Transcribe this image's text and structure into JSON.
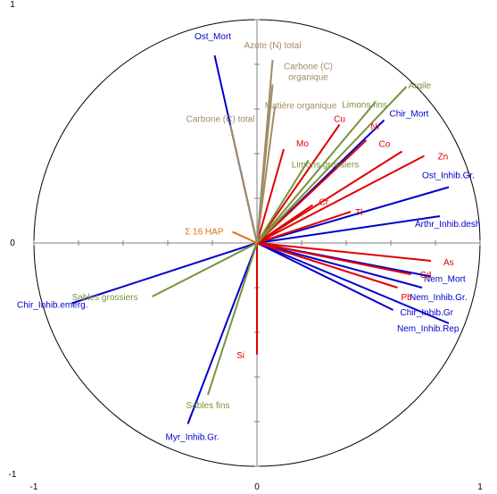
{
  "chart_data": {
    "type": "scatter",
    "subtype": "correlation-circle",
    "title": "",
    "xlabel": "",
    "ylabel": "",
    "xlim": [
      -1,
      1
    ],
    "ylim": [
      -1,
      1
    ],
    "x_ticks": [
      "-1",
      "0",
      "1"
    ],
    "y_ticks": [
      "1",
      "0",
      "-1"
    ],
    "grid": false,
    "legend": "none",
    "colors": {
      "biological": "#0000CC",
      "chemical": "#E00000",
      "texture": "#77933C",
      "organic": "#A08C64",
      "pah": "#E46C0A",
      "axes": "#808080",
      "circle": "#000000"
    },
    "series": [
      {
        "group": "biological",
        "values": [
          {
            "label": "Ost_Mort",
            "x": -0.19,
            "y": 0.84
          },
          {
            "label": "Chir_Mort",
            "x": 0.57,
            "y": 0.55
          },
          {
            "label": "Ost_Inhib.Gr.",
            "x": 0.86,
            "y": 0.25
          },
          {
            "label": "Arthr_Inhib.desh",
            "x": 0.82,
            "y": 0.12
          },
          {
            "label": "Nem_Mort",
            "x": 0.78,
            "y": -0.15
          },
          {
            "label": "Nem_Inhib.Gr.",
            "x": 0.74,
            "y": -0.2
          },
          {
            "label": "Chir_Inhib.Gr",
            "x": 0.61,
            "y": -0.3
          },
          {
            "label": "Nem_Inhib.Rep",
            "x": 0.86,
            "y": -0.36
          },
          {
            "label": "Myr_Inhib.Gr.",
            "x": -0.31,
            "y": -0.81
          },
          {
            "label": "Chir_Inhib.emerg.",
            "x": -0.83,
            "y": -0.27
          }
        ]
      },
      {
        "group": "chemical",
        "values": [
          {
            "label": "Cu",
            "x": 0.37,
            "y": 0.53
          },
          {
            "label": "Mo",
            "x": 0.12,
            "y": 0.42
          },
          {
            "label": "Ni",
            "x": 0.49,
            "y": 0.46
          },
          {
            "label": "Co",
            "x": 0.65,
            "y": 0.41
          },
          {
            "label": "Zn",
            "x": 0.75,
            "y": 0.39
          },
          {
            "label": "Cr",
            "x": 0.25,
            "y": 0.17
          },
          {
            "label": "Tl",
            "x": 0.42,
            "y": 0.14
          },
          {
            "label": "As",
            "x": 0.78,
            "y": -0.08
          },
          {
            "label": "Cd",
            "x": 0.69,
            "y": -0.14
          },
          {
            "label": "Pb",
            "x": 0.63,
            "y": -0.2
          },
          {
            "label": "Si",
            "x": 0.0,
            "y": -0.5
          }
        ]
      },
      {
        "group": "texture",
        "values": [
          {
            "label": "Argile",
            "x": 0.67,
            "y": 0.7
          },
          {
            "label": "Limons fins",
            "x": 0.53,
            "y": 0.63
          },
          {
            "label": "Limons grossiers",
            "x": 0.23,
            "y": 0.37
          },
          {
            "label": "Sables grossiers",
            "x": -0.47,
            "y": -0.24
          },
          {
            "label": "Sables fins",
            "x": -0.22,
            "y": -0.68
          }
        ]
      },
      {
        "group": "organic",
        "values": [
          {
            "label": "Azote (N) total",
            "x": 0.07,
            "y": 0.82
          },
          {
            "label": "Carbone (C) organique",
            "x": 0.07,
            "y": 0.71
          },
          {
            "label": "Matière organique",
            "x": 0.08,
            "y": 0.61
          },
          {
            "label": "Carbone (C) total",
            "x": -0.12,
            "y": 0.53
          }
        ]
      },
      {
        "group": "pah",
        "values": [
          {
            "label": "Σ 16 HAP",
            "x": -0.11,
            "y": 0.05
          }
        ]
      }
    ]
  }
}
